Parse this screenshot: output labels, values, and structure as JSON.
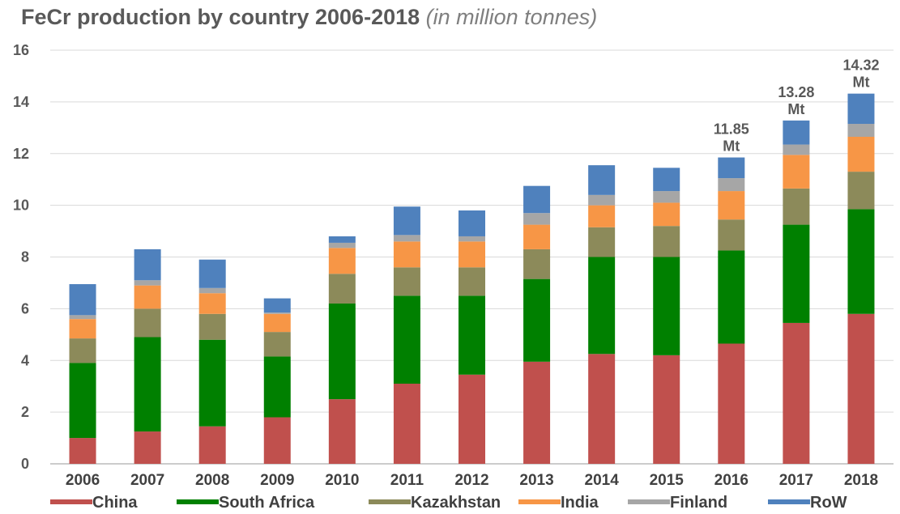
{
  "title": {
    "main": "FeCr production by country 2006-2018",
    "subtitle": "(in million tonnes)"
  },
  "chart_data": {
    "type": "bar",
    "stacked": true,
    "title": "FeCr production by country 2006-2018",
    "subtitle": "(in million tonnes)",
    "xlabel": "",
    "ylabel": "",
    "ylim": [
      0,
      16
    ],
    "yticks": [
      0,
      2,
      4,
      6,
      8,
      10,
      12,
      14,
      16
    ],
    "grid": true,
    "legend_position": "bottom",
    "categories": [
      "2006",
      "2007",
      "2008",
      "2009",
      "2010",
      "2011",
      "2012",
      "2013",
      "2014",
      "2015",
      "2016",
      "2017",
      "2018"
    ],
    "series": [
      {
        "name": "China",
        "color": "#c0504d",
        "values": [
          1.0,
          1.25,
          1.45,
          1.8,
          2.5,
          3.1,
          3.45,
          3.95,
          4.25,
          4.2,
          4.65,
          5.45,
          5.8
        ]
      },
      {
        "name": "South Africa",
        "color": "#008000",
        "values": [
          2.9,
          3.65,
          3.35,
          2.35,
          3.7,
          3.4,
          3.05,
          3.2,
          3.75,
          3.8,
          3.6,
          3.8,
          4.05
        ]
      },
      {
        "name": "Kazakhstan",
        "color": "#8c8a5a",
        "values": [
          0.95,
          1.1,
          1.0,
          0.95,
          1.15,
          1.1,
          1.1,
          1.15,
          1.15,
          1.2,
          1.2,
          1.4,
          1.45
        ]
      },
      {
        "name": "India",
        "color": "#f79646",
        "values": [
          0.75,
          0.9,
          0.8,
          0.7,
          1.0,
          1.0,
          1.0,
          0.95,
          0.85,
          0.9,
          1.1,
          1.3,
          1.35
        ]
      },
      {
        "name": "Finland",
        "color": "#a6a6a6",
        "values": [
          0.15,
          0.2,
          0.2,
          0.05,
          0.2,
          0.25,
          0.2,
          0.45,
          0.4,
          0.45,
          0.5,
          0.4,
          0.5
        ]
      },
      {
        "name": "RoW",
        "color": "#4f81bd",
        "values": [
          1.2,
          1.2,
          1.1,
          0.55,
          0.25,
          1.1,
          1.0,
          1.05,
          1.15,
          0.9,
          0.8,
          0.93,
          1.17
        ]
      }
    ],
    "annotations": [
      {
        "category": "2016",
        "lines": [
          "11.85",
          "Mt"
        ]
      },
      {
        "category": "2017",
        "lines": [
          "13.28",
          "Mt"
        ]
      },
      {
        "category": "2018",
        "lines": [
          "14.32",
          "Mt"
        ]
      }
    ]
  }
}
